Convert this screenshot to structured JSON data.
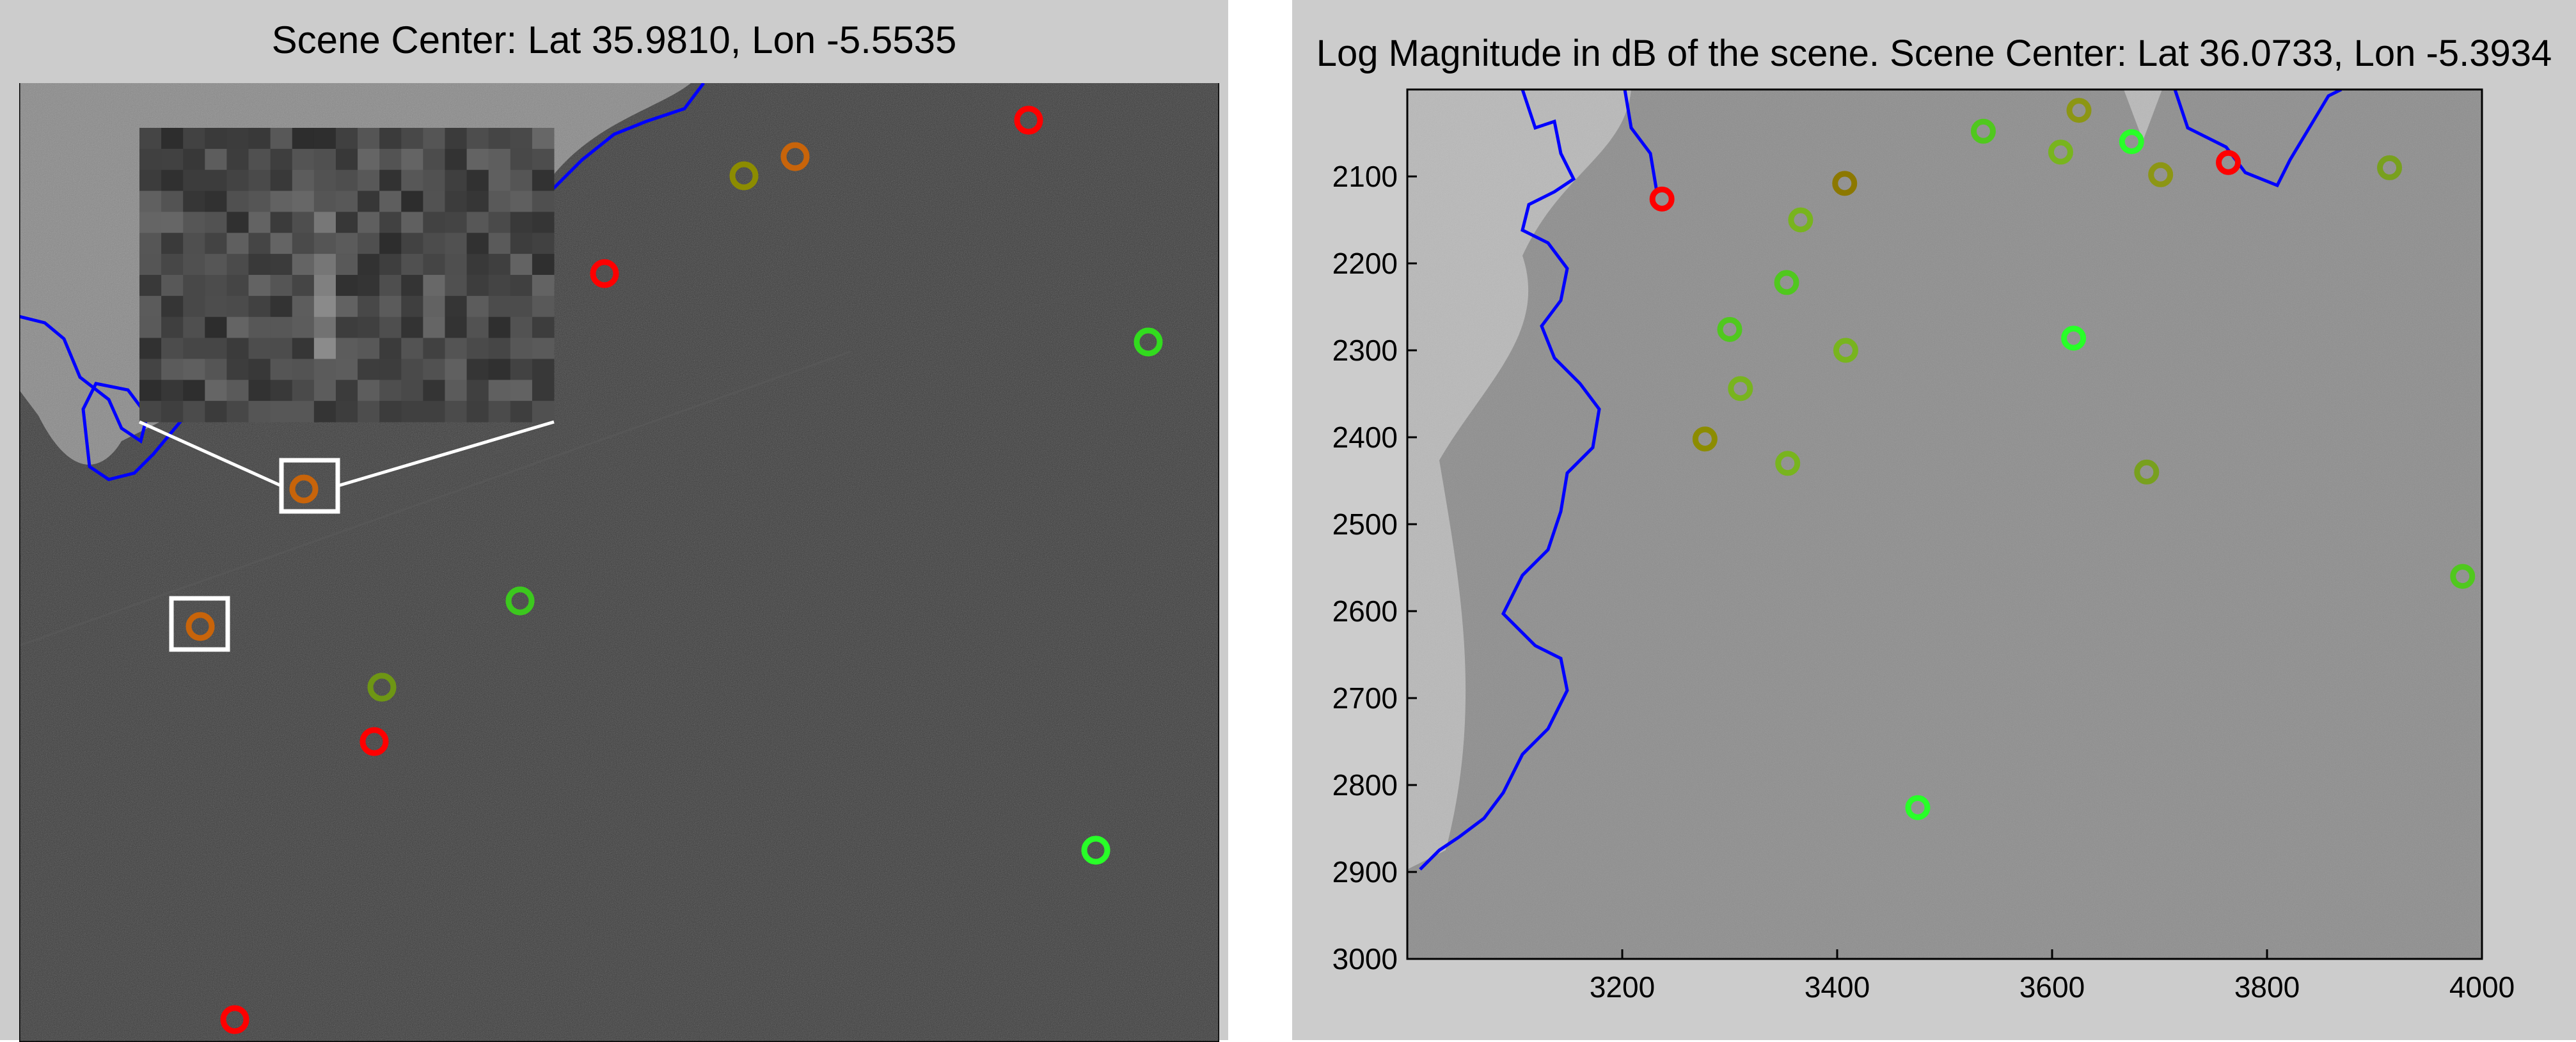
{
  "left_panel": {
    "title": "Scene Center: Lat 35.9810, Lon -5.5535",
    "ship_markers": [
      {
        "color": "#ff0000"
      },
      {
        "color": "#c8640a"
      },
      {
        "color": "#8c8c00"
      },
      {
        "color": "#ff0000"
      },
      {
        "color": "#32dc1e"
      },
      {
        "color": "#c8640a"
      },
      {
        "color": "#c8640a"
      },
      {
        "color": "#3cc81e"
      },
      {
        "color": "#6e9614"
      },
      {
        "color": "#ff0000"
      },
      {
        "color": "#28ff28"
      },
      {
        "color": "#ff0000"
      }
    ],
    "zoom_inset": {
      "source_marker": "selected-ship-marker"
    }
  },
  "right_panel": {
    "title": "Log Magnitude in dB of the scene. Scene Center: Lat 36.0733, Lon -5.3934",
    "axes": {
      "xticks": [
        "3200",
        "3400",
        "3600",
        "3800",
        "4000"
      ],
      "yticks": [
        "2100",
        "2200",
        "2300",
        "2400",
        "2500",
        "2600",
        "2700",
        "2800",
        "2900",
        "3000"
      ]
    },
    "ship_markers": [
      {
        "x": 3237,
        "y": 2126,
        "color": "#ff0000"
      },
      {
        "x": 3407,
        "y": 2108,
        "color": "#8c7800"
      },
      {
        "x": 3366,
        "y": 2150,
        "color": "#78b41e"
      },
      {
        "x": 3536,
        "y": 2048,
        "color": "#50c81e"
      },
      {
        "x": 3608,
        "y": 2072,
        "color": "#78b41e"
      },
      {
        "x": 3625,
        "y": 2024,
        "color": "#8c9614"
      },
      {
        "x": 3674,
        "y": 2060,
        "color": "#28ff28"
      },
      {
        "x": 3701,
        "y": 2098,
        "color": "#8c9614"
      },
      {
        "x": 3764,
        "y": 2084,
        "color": "#ff0000"
      },
      {
        "x": 3914,
        "y": 2090,
        "color": "#78a01e"
      },
      {
        "x": 3353,
        "y": 2222,
        "color": "#50c81e"
      },
      {
        "x": 3300,
        "y": 2276,
        "color": "#50c81e"
      },
      {
        "x": 3408,
        "y": 2300,
        "color": "#78b41e"
      },
      {
        "x": 3620,
        "y": 2286,
        "color": "#28ff28"
      },
      {
        "x": 3310,
        "y": 2344,
        "color": "#78b41e"
      },
      {
        "x": 3277,
        "y": 2402,
        "color": "#8c8c00"
      },
      {
        "x": 3354,
        "y": 2430,
        "color": "#78b41e"
      },
      {
        "x": 3688,
        "y": 2440,
        "color": "#78a01e"
      },
      {
        "x": 3982,
        "y": 2560,
        "color": "#50c81e"
      },
      {
        "x": 3475,
        "y": 2826,
        "color": "#28ff28"
      }
    ]
  }
}
